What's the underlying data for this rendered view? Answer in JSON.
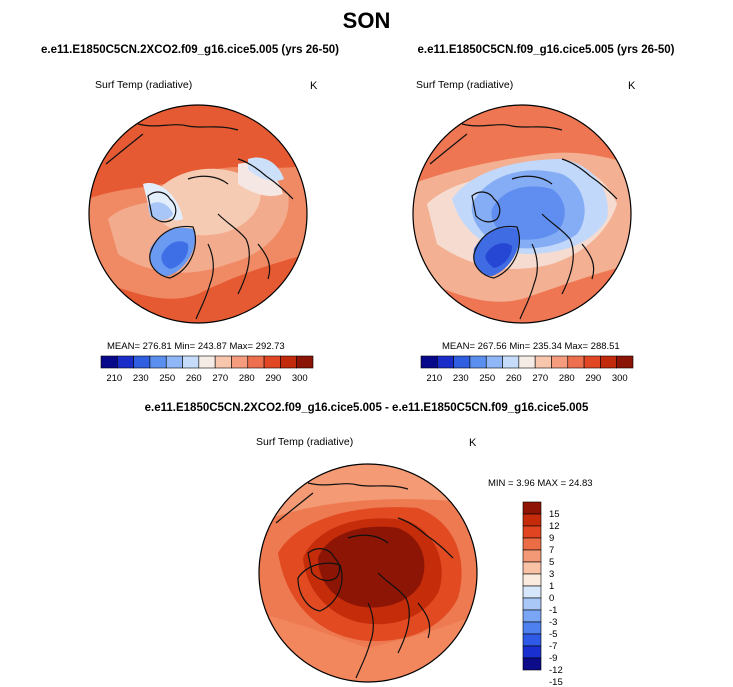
{
  "header": {
    "title": "SON"
  },
  "colors": {
    "abs_scale": [
      "#08088a",
      "#1a2dc9",
      "#2f5fe0",
      "#5a8ff0",
      "#8fb6f7",
      "#c6dcfa",
      "#f6ece6",
      "#f7c6ad",
      "#f49c7d",
      "#ee6f4e",
      "#e14722",
      "#c22a0c",
      "#8a1406"
    ],
    "diff_scale": [
      "#0c0c8a",
      "#1a2fd0",
      "#2e5ae6",
      "#4f80f0",
      "#7aa6f5",
      "#a9c8f8",
      "#d6e6fb",
      "#fbeade",
      "#f8c2a6",
      "#f39975",
      "#ec6c45",
      "#e04420",
      "#c52a0a",
      "#8e1505"
    ],
    "coast": "#111111"
  },
  "panels": [
    {
      "title": "e.e11.E1850C5CN.2XCO2.f09_g16.cice5.005 (yrs 26-50)",
      "variable": "Surf Temp (radiative)",
      "units": "K",
      "stats": "MEAN= 276.81  Min= 243.87  Max= 292.73"
    },
    {
      "title": "e.e11.E1850C5CN.f09_g16.cice5.005 (yrs 26-50)",
      "variable": "Surf Temp (radiative)",
      "units": "K",
      "stats": "MEAN= 267.56  Min= 235.34  Max= 288.51"
    },
    {
      "title": "e.e11.E1850C5CN.2XCO2.f09_g16.cice5.005 - e.e11.E1850C5CN.f09_g16.cice5.005",
      "variable": "Surf Temp (radiative)",
      "units": "K",
      "stats": "MIN =   3.96 MAX =  24.83"
    }
  ],
  "chart_data": [
    {
      "type": "heatmap",
      "title": "e.e11.E1850C5CN.2XCO2.f09_g16.cice5.005 (yrs 26-50)",
      "variable": "Surf Temp (radiative)",
      "units": "K",
      "projection": "polar stereographic (north)",
      "contour_levels": [
        210,
        220,
        230,
        240,
        250,
        255,
        260,
        265,
        270,
        275,
        280,
        285,
        290,
        295,
        300
      ],
      "colorbar_labels": [
        "210",
        "230",
        "250",
        "260",
        "270",
        "280",
        "290",
        "300"
      ],
      "mean": 276.81,
      "min": 243.87,
      "max": 292.73
    },
    {
      "type": "heatmap",
      "title": "e.e11.E1850C5CN.f09_g16.cice5.005 (yrs 26-50)",
      "variable": "Surf Temp (radiative)",
      "units": "K",
      "projection": "polar stereographic (north)",
      "contour_levels": [
        210,
        220,
        230,
        240,
        250,
        255,
        260,
        265,
        270,
        275,
        280,
        285,
        290,
        295,
        300
      ],
      "colorbar_labels": [
        "210",
        "230",
        "250",
        "260",
        "270",
        "280",
        "290",
        "300"
      ],
      "mean": 267.56,
      "min": 235.34,
      "max": 288.51
    },
    {
      "type": "heatmap",
      "title": "e.e11.E1850C5CN.2XCO2.f09_g16.cice5.005 - e.e11.E1850C5CN.f09_g16.cice5.005",
      "variable": "Surf Temp (radiative)",
      "units": "K",
      "projection": "polar stereographic (north)",
      "contour_levels": [
        -15,
        -12,
        -9,
        -7,
        -5,
        -3,
        -1,
        0,
        1,
        3,
        5,
        7,
        9,
        12,
        15
      ],
      "colorbar_labels": [
        "15",
        "12",
        "9",
        "7",
        "5",
        "3",
        "1",
        "0",
        "-1",
        "-3",
        "-5",
        "-7",
        "-9",
        "-12",
        "-15"
      ],
      "min": 3.96,
      "max": 24.83
    }
  ]
}
